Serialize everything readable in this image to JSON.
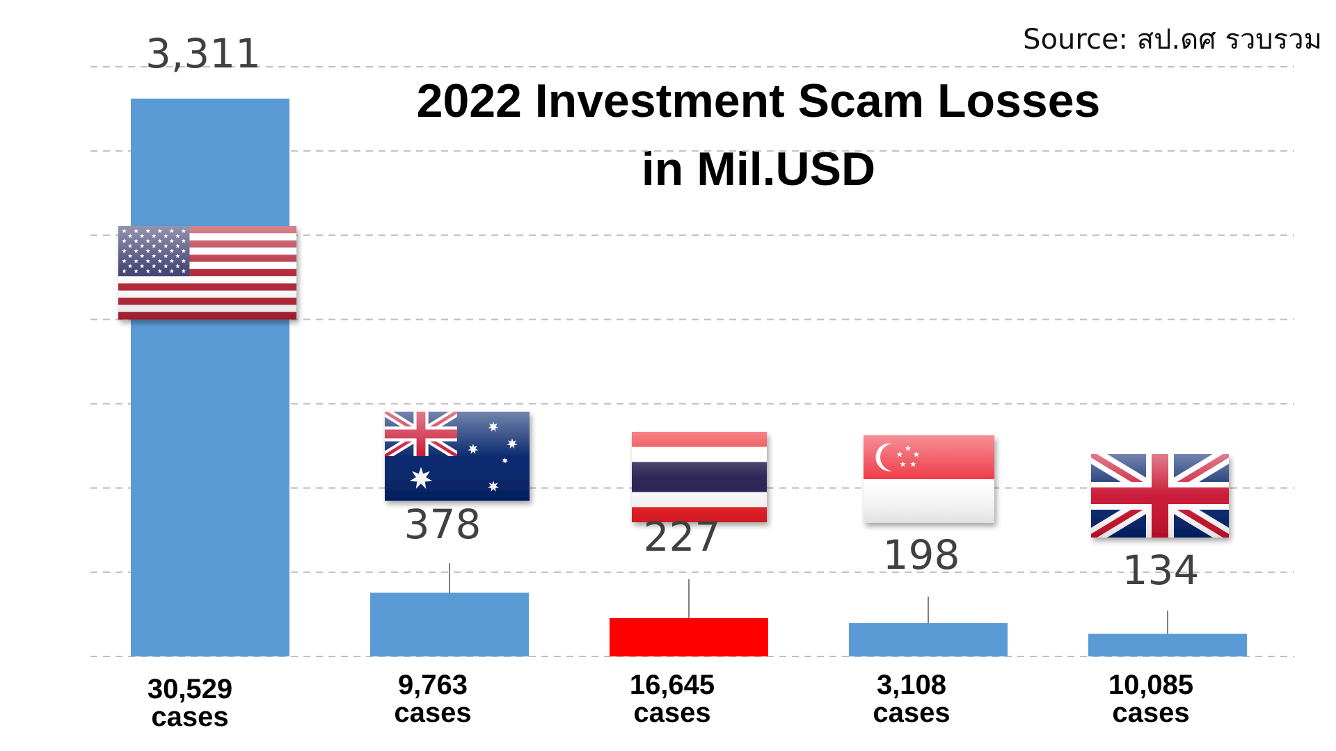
{
  "source": "Source: สป.ดศ รวบรวม",
  "colors": {
    "bar": "#5b9bd5",
    "highlight": "#ff0000",
    "grid": "#bfbfbf",
    "value_label": "#404040"
  },
  "chart_data": {
    "type": "bar",
    "title": [
      "2022 Investment Scam Losses",
      "in Mil.USD"
    ],
    "categories": [
      "United States",
      "Australia",
      "Thailand",
      "Singapore",
      "United Kingdom"
    ],
    "category_icons": [
      "us-flag-icon",
      "australia-flag-icon",
      "thailand-flag-icon",
      "singapore-flag-icon",
      "uk-flag-icon"
    ],
    "values": [
      3311,
      378,
      227,
      198,
      134
    ],
    "value_labels": [
      "3,311",
      "378",
      "227",
      "198",
      "134"
    ],
    "cases_labels": [
      [
        "30,529",
        "cases"
      ],
      [
        "9,763",
        "cases"
      ],
      [
        "16,645",
        "cases"
      ],
      [
        "3,108",
        "cases"
      ],
      [
        "10,085",
        "cases"
      ]
    ],
    "highlight_index": 2,
    "ylim": [
      0,
      3500
    ],
    "grid": true,
    "xlabel": "",
    "ylabel": ""
  }
}
